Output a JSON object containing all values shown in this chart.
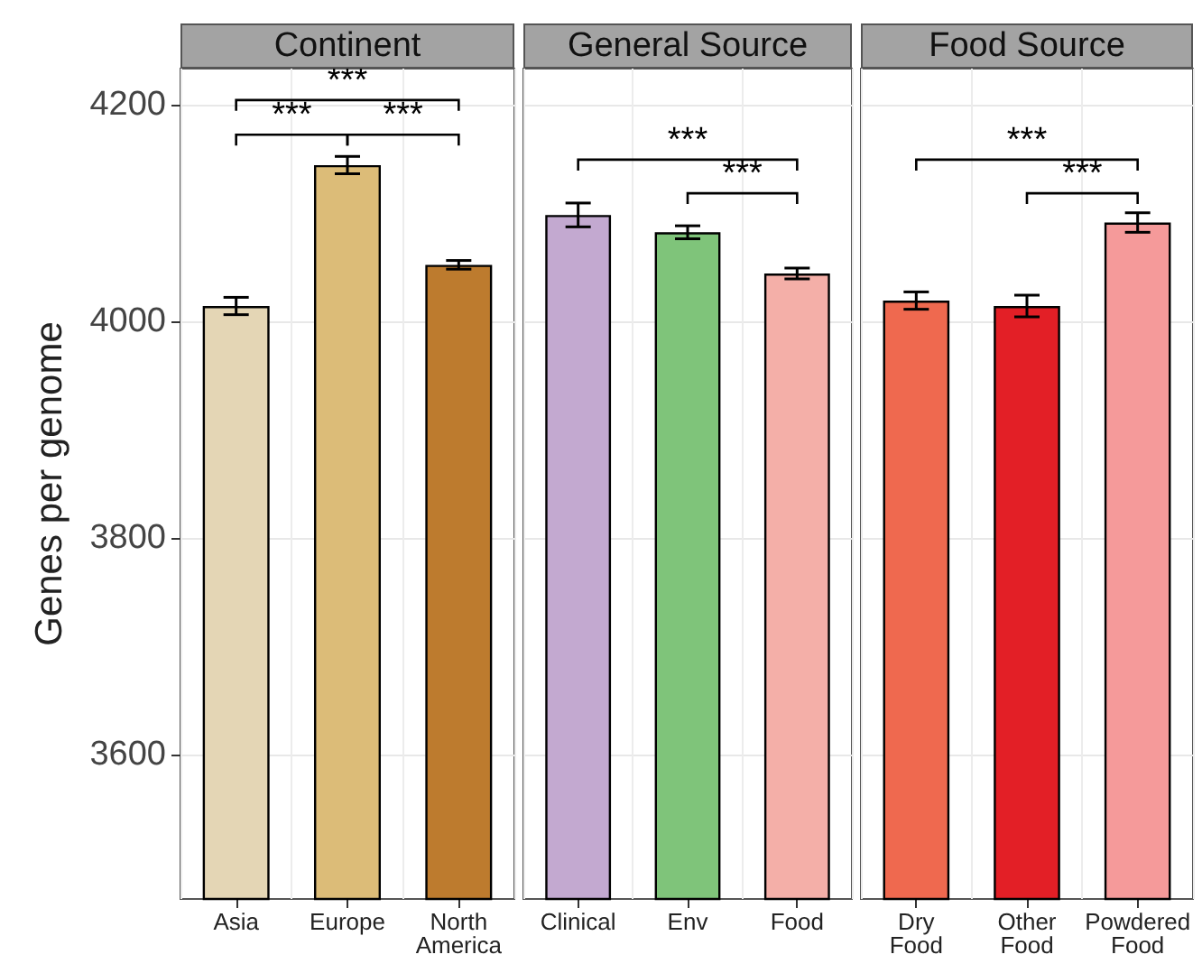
{
  "chart_data": [
    {
      "type": "bar",
      "title": "Continent",
      "ylabel": "Genes per genome",
      "categories": [
        "Asia",
        "Europe",
        "North America"
      ],
      "values": [
        4014,
        4144,
        4052
      ],
      "colors": [
        "#e4d6b5",
        "#dcbc78",
        "#bd7b2e"
      ],
      "errors": [
        8,
        8,
        4
      ],
      "ylim": [
        3467,
        4233
      ],
      "yticks": [
        3600,
        3800,
        4000,
        4200
      ],
      "grid": true,
      "annotations": [
        "***",
        "***",
        "***"
      ]
    },
    {
      "type": "bar",
      "title": "General Source",
      "categories": [
        "Clinical",
        "Env",
        "Food"
      ],
      "values": [
        4098,
        4082,
        4044
      ],
      "colors": [
        "#c3a9d0",
        "#7fc47a",
        "#f4afa8"
      ],
      "errors": [
        11,
        6,
        5
      ],
      "ylim": [
        3467,
        4233
      ],
      "yticks": [
        3600,
        3800,
        4000,
        4200
      ],
      "grid": true,
      "tick_labels": "x",
      "annotations": [
        "***",
        "***"
      ]
    },
    {
      "type": "bar",
      "title": "Food Source",
      "categories": [
        "Dry Food",
        "Other Food",
        "Powdered Food"
      ],
      "values": [
        4019,
        4014,
        4091
      ],
      "colors": [
        "#ef694f",
        "#e31f26",
        "#f59a9a"
      ],
      "errors": [
        8,
        10,
        9
      ],
      "ylim": [
        3467,
        4233
      ],
      "yticks": [
        3600,
        3800,
        4000,
        4200
      ],
      "grid": true,
      "tick_labels": "x",
      "annotations": [
        "***",
        "***"
      ]
    }
  ]
}
